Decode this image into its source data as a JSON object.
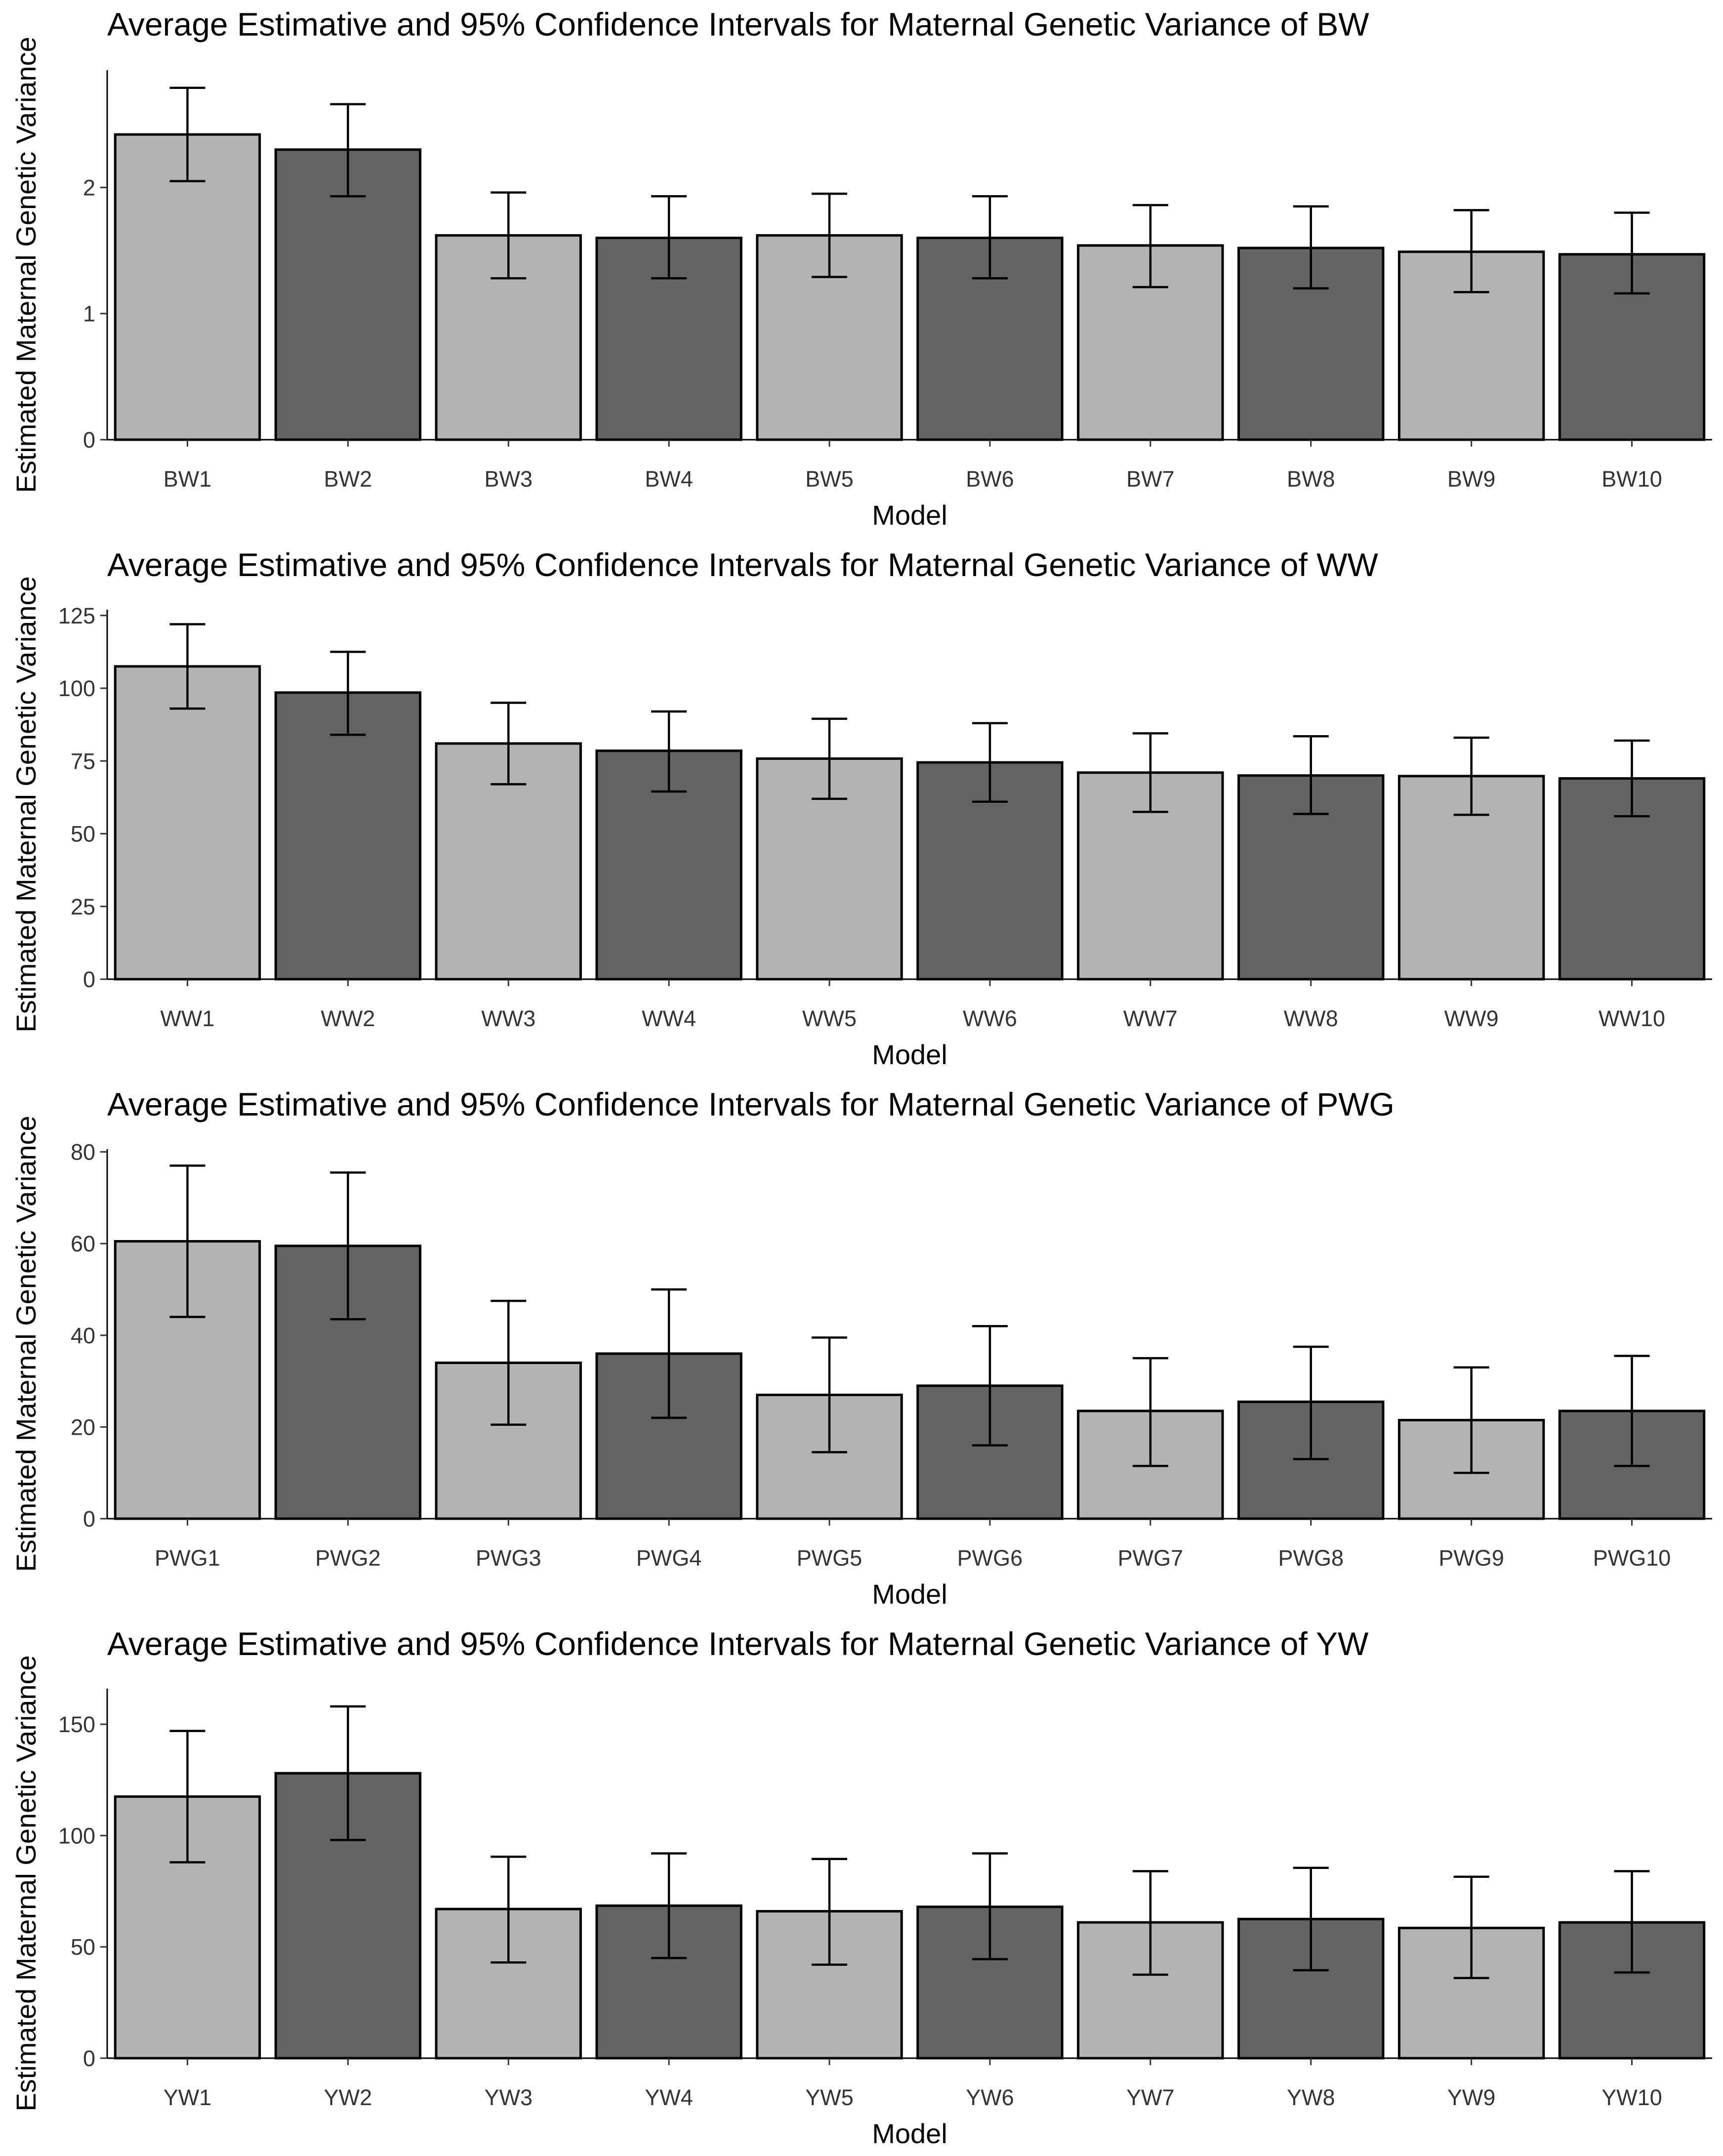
{
  "colors": {
    "light_bar": "#b3b3b3",
    "dark_bar": "#636363"
  },
  "chart_data": [
    {
      "type": "bar",
      "title": "Average Estimative and 95% Confidence Intervals for Maternal Genetic Variance of BW",
      "xlabel": "Model",
      "ylabel": "Estimated Maternal Genetic Variance",
      "categories": [
        "BW1",
        "BW2",
        "BW3",
        "BW4",
        "BW5",
        "BW6",
        "BW7",
        "BW8",
        "BW9",
        "BW10"
      ],
      "values": [
        2.42,
        2.3,
        1.62,
        1.6,
        1.62,
        1.6,
        1.54,
        1.52,
        1.49,
        1.47
      ],
      "ci_lower": [
        2.05,
        1.93,
        1.28,
        1.28,
        1.29,
        1.28,
        1.21,
        1.2,
        1.17,
        1.16
      ],
      "ci_upper": [
        2.79,
        2.66,
        1.96,
        1.93,
        1.95,
        1.93,
        1.86,
        1.85,
        1.82,
        1.8
      ],
      "yticks": [
        0,
        1,
        2
      ],
      "ylim": [
        0,
        2.93
      ],
      "bar_colors": [
        "light",
        "dark",
        "light",
        "dark",
        "light",
        "dark",
        "light",
        "dark",
        "light",
        "dark"
      ],
      "grid": false,
      "legend": "none"
    },
    {
      "type": "bar",
      "title": "Average Estimative and 95% Confidence Intervals for Maternal Genetic Variance of WW",
      "xlabel": "Model",
      "ylabel": "Estimated Maternal Genetic Variance",
      "categories": [
        "WW1",
        "WW2",
        "WW3",
        "WW4",
        "WW5",
        "WW6",
        "WW7",
        "WW8",
        "WW9",
        "WW10"
      ],
      "values": [
        107.5,
        98.5,
        81.0,
        78.5,
        75.8,
        74.5,
        71.0,
        70.0,
        69.8,
        69.0
      ],
      "ci_lower": [
        93.0,
        84.0,
        67.0,
        64.5,
        62.0,
        61.0,
        57.5,
        56.8,
        56.5,
        56.0
      ],
      "ci_upper": [
        122.0,
        112.5,
        95.0,
        92.0,
        89.5,
        88.0,
        84.5,
        83.5,
        83.0,
        82.0
      ],
      "yticks": [
        0,
        25,
        50,
        75,
        100,
        125
      ],
      "ylim": [
        0,
        127
      ],
      "bar_colors": [
        "light",
        "dark",
        "light",
        "dark",
        "light",
        "dark",
        "light",
        "dark",
        "light",
        "dark"
      ],
      "grid": false,
      "legend": "none"
    },
    {
      "type": "bar",
      "title": "Average Estimative and 95% Confidence Intervals for Maternal Genetic Variance of PWG",
      "xlabel": "Model",
      "ylabel": "Estimated Maternal Genetic Variance",
      "categories": [
        "PWG1",
        "PWG2",
        "PWG3",
        "PWG4",
        "PWG5",
        "PWG6",
        "PWG7",
        "PWG8",
        "PWG9",
        "PWG10"
      ],
      "values": [
        60.5,
        59.5,
        34.0,
        36.0,
        27.0,
        29.0,
        23.5,
        25.5,
        21.5,
        23.5
      ],
      "ci_lower": [
        44.0,
        43.5,
        20.5,
        22.0,
        14.5,
        16.0,
        11.5,
        13.0,
        10.0,
        11.5
      ],
      "ci_upper": [
        77.0,
        75.5,
        47.5,
        50.0,
        39.5,
        42.0,
        35.0,
        37.5,
        33.0,
        35.5
      ],
      "yticks": [
        0,
        20,
        40,
        60,
        80
      ],
      "ylim": [
        0,
        80.6
      ],
      "bar_colors": [
        "light",
        "dark",
        "light",
        "dark",
        "light",
        "dark",
        "light",
        "dark",
        "light",
        "dark"
      ],
      "grid": false,
      "legend": "none"
    },
    {
      "type": "bar",
      "title": "Average Estimative and 95% Confidence Intervals for Maternal Genetic Variance of YW",
      "xlabel": "Model",
      "ylabel": "Estimated Maternal Genetic Variance",
      "categories": [
        "YW1",
        "YW2",
        "YW3",
        "YW4",
        "YW5",
        "YW6",
        "YW7",
        "YW8",
        "YW9",
        "YW10"
      ],
      "values": [
        117.5,
        128.0,
        67.0,
        68.5,
        66.0,
        68.0,
        61.0,
        62.5,
        58.5,
        61.0
      ],
      "ci_lower": [
        88.0,
        98.0,
        43.0,
        45.0,
        42.0,
        44.5,
        37.5,
        39.5,
        36.0,
        38.5
      ],
      "ci_upper": [
        147.0,
        158.0,
        90.5,
        92.0,
        89.5,
        92.0,
        84.0,
        85.5,
        81.5,
        84.0
      ],
      "yticks": [
        0,
        50,
        100,
        150
      ],
      "ylim": [
        0,
        166
      ],
      "bar_colors": [
        "light",
        "dark",
        "light",
        "dark",
        "light",
        "dark",
        "light",
        "dark",
        "light",
        "dark"
      ],
      "grid": false,
      "legend": "none"
    }
  ]
}
